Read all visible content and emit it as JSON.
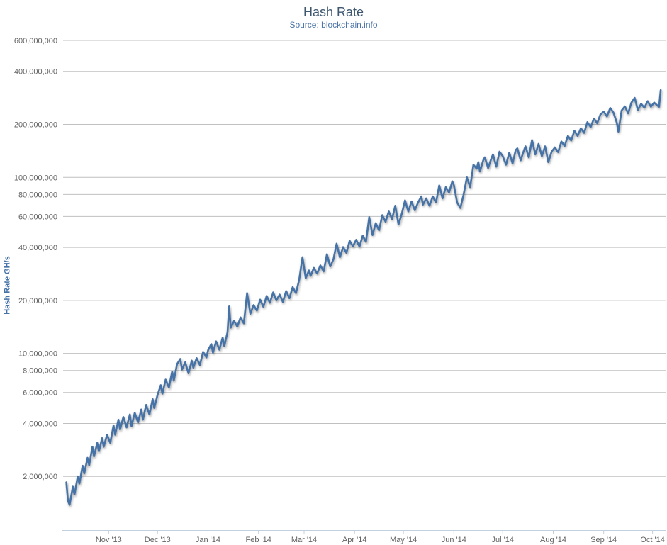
{
  "chart": {
    "title": "Hash Rate",
    "subtitle": "Source: blockchain.info",
    "y_axis_title": "Hash Rate GH/s"
  },
  "colors": {
    "series": "#4572A7",
    "title": "#3E576F",
    "subtitle": "#4C74A8",
    "axis_title": "#4572A7",
    "axis_label": "#636363",
    "gridline": "#C0C0C0",
    "axis_line": "#C0D0E0",
    "background": "#FFFFFF"
  },
  "chart_data": {
    "type": "line",
    "title": "Hash Rate",
    "subtitle": "Source: blockchain.info",
    "xlabel": "",
    "ylabel": "Hash Rate GH/s",
    "y_unit": "GH/s",
    "y_scale": "log",
    "ylim": [
      1000000,
      600000000
    ],
    "grid": "horizontal",
    "legend": "none",
    "x_range_dates": [
      "2013-10-04",
      "2014-10-09"
    ],
    "yticks": [
      {
        "value": 600000000,
        "label": "600,000,000"
      },
      {
        "value": 400000000,
        "label": "400,000,000"
      },
      {
        "value": 200000000,
        "label": "200,000,000"
      },
      {
        "value": 100000000,
        "label": "100,000,000"
      },
      {
        "value": 80000000,
        "label": "80,000,000"
      },
      {
        "value": 60000000,
        "label": "60,000,000"
      },
      {
        "value": 40000000,
        "label": "40,000,000"
      },
      {
        "value": 20000000,
        "label": "20,000,000"
      },
      {
        "value": 10000000,
        "label": "10,000,000"
      },
      {
        "value": 8000000,
        "label": "8,000,000"
      },
      {
        "value": 6000000,
        "label": "6,000,000"
      },
      {
        "value": 4000000,
        "label": "4,000,000"
      },
      {
        "value": 2000000,
        "label": "2,000,000"
      }
    ],
    "xticks": [
      {
        "date": "2013-11-01",
        "label": "Nov '13"
      },
      {
        "date": "2013-12-01",
        "label": "Dec '13"
      },
      {
        "date": "2014-01-01",
        "label": "Jan '14"
      },
      {
        "date": "2014-02-01",
        "label": "Feb '14"
      },
      {
        "date": "2014-03-01",
        "label": "Mar '14"
      },
      {
        "date": "2014-04-01",
        "label": "Apr '14"
      },
      {
        "date": "2014-05-01",
        "label": "May '14"
      },
      {
        "date": "2014-06-01",
        "label": "Jun '14"
      },
      {
        "date": "2014-07-01",
        "label": "Jul '14"
      },
      {
        "date": "2014-08-01",
        "label": "Aug '14"
      },
      {
        "date": "2014-09-01",
        "label": "Sep '14"
      },
      {
        "date": "2014-10-01",
        "label": "Oct '14"
      }
    ],
    "series": [
      {
        "name": "Hash Rate",
        "unit": "GH/s",
        "value_scale": 1000000,
        "points_note": "values are millions of GH/s, estimated from plot",
        "points": [
          [
            "2013-10-06",
            1.85
          ],
          [
            "2013-10-07",
            1.45
          ],
          [
            "2013-10-08",
            1.38
          ],
          [
            "2013-10-10",
            1.75
          ],
          [
            "2013-10-11",
            1.58
          ],
          [
            "2013-10-13",
            2.0
          ],
          [
            "2013-10-14",
            1.82
          ],
          [
            "2013-10-16",
            2.3
          ],
          [
            "2013-10-17",
            2.08
          ],
          [
            "2013-10-19",
            2.55
          ],
          [
            "2013-10-20",
            2.32
          ],
          [
            "2013-10-22",
            2.95
          ],
          [
            "2013-10-23",
            2.6
          ],
          [
            "2013-10-25",
            3.1
          ],
          [
            "2013-10-26",
            2.78
          ],
          [
            "2013-10-28",
            3.3
          ],
          [
            "2013-10-29",
            2.95
          ],
          [
            "2013-10-31",
            3.45
          ],
          [
            "2013-11-02",
            3.1
          ],
          [
            "2013-11-04",
            3.9
          ],
          [
            "2013-11-05",
            3.45
          ],
          [
            "2013-11-07",
            4.2
          ],
          [
            "2013-11-08",
            3.7
          ],
          [
            "2013-11-10",
            4.35
          ],
          [
            "2013-11-12",
            3.8
          ],
          [
            "2013-11-14",
            4.5
          ],
          [
            "2013-11-15",
            3.85
          ],
          [
            "2013-11-17",
            4.6
          ],
          [
            "2013-11-19",
            4.05
          ],
          [
            "2013-11-21",
            4.8
          ],
          [
            "2013-11-22",
            4.2
          ],
          [
            "2013-11-24",
            5.1
          ],
          [
            "2013-11-26",
            4.5
          ],
          [
            "2013-11-28",
            5.5
          ],
          [
            "2013-11-29",
            4.9
          ],
          [
            "2013-12-01",
            5.8
          ],
          [
            "2013-12-03",
            6.6
          ],
          [
            "2013-12-04",
            5.9
          ],
          [
            "2013-12-06",
            7.1
          ],
          [
            "2013-12-08",
            6.4
          ],
          [
            "2013-12-10",
            7.9
          ],
          [
            "2013-12-11",
            7.0
          ],
          [
            "2013-12-13",
            8.7
          ],
          [
            "2013-12-15",
            9.3
          ],
          [
            "2013-12-16",
            8.1
          ],
          [
            "2013-12-18",
            8.9
          ],
          [
            "2013-12-20",
            7.7
          ],
          [
            "2013-12-22",
            9.1
          ],
          [
            "2013-12-23",
            8.3
          ],
          [
            "2013-12-25",
            9.4
          ],
          [
            "2013-12-27",
            8.6
          ],
          [
            "2013-12-29",
            10.2
          ],
          [
            "2013-12-31",
            9.5
          ],
          [
            "2014-01-01",
            10.4
          ],
          [
            "2014-01-03",
            11.3
          ],
          [
            "2014-01-04",
            10.1
          ],
          [
            "2014-01-06",
            11.7
          ],
          [
            "2014-01-08",
            10.5
          ],
          [
            "2014-01-10",
            12.3
          ],
          [
            "2014-01-11",
            11.0
          ],
          [
            "2014-01-13",
            13.2
          ],
          [
            "2014-01-14",
            18.5
          ],
          [
            "2014-01-15",
            14.0
          ],
          [
            "2014-01-17",
            15.3
          ],
          [
            "2014-01-19",
            14.2
          ],
          [
            "2014-01-21",
            16.0
          ],
          [
            "2014-01-23",
            14.8
          ],
          [
            "2014-01-25",
            22.0
          ],
          [
            "2014-01-27",
            16.8
          ],
          [
            "2014-01-29",
            18.8
          ],
          [
            "2014-01-31",
            17.5
          ],
          [
            "2014-02-02",
            20.2
          ],
          [
            "2014-02-04",
            18.4
          ],
          [
            "2014-02-06",
            21.2
          ],
          [
            "2014-02-08",
            19.4
          ],
          [
            "2014-02-10",
            22.2
          ],
          [
            "2014-02-12",
            20.0
          ],
          [
            "2014-02-14",
            21.6
          ],
          [
            "2014-02-16",
            19.6
          ],
          [
            "2014-02-18",
            22.6
          ],
          [
            "2014-02-20",
            20.6
          ],
          [
            "2014-02-22",
            23.8
          ],
          [
            "2014-02-24",
            22.0
          ],
          [
            "2014-02-26",
            26.2
          ],
          [
            "2014-02-28",
            35.2
          ],
          [
            "2014-03-02",
            26.8
          ],
          [
            "2014-03-04",
            29.6
          ],
          [
            "2014-03-05",
            27.6
          ],
          [
            "2014-03-07",
            30.6
          ],
          [
            "2014-03-09",
            28.4
          ],
          [
            "2014-03-11",
            31.6
          ],
          [
            "2014-03-13",
            29.2
          ],
          [
            "2014-03-15",
            36.6
          ],
          [
            "2014-03-17",
            31.2
          ],
          [
            "2014-03-19",
            34.2
          ],
          [
            "2014-03-21",
            42.0
          ],
          [
            "2014-03-23",
            35.2
          ],
          [
            "2014-03-25",
            40.2
          ],
          [
            "2014-03-27",
            37.2
          ],
          [
            "2014-03-29",
            43.6
          ],
          [
            "2014-03-31",
            40.6
          ],
          [
            "2014-04-02",
            44.2
          ],
          [
            "2014-04-04",
            40.4
          ],
          [
            "2014-04-06",
            46.6
          ],
          [
            "2014-04-08",
            43.0
          ],
          [
            "2014-04-10",
            59.5
          ],
          [
            "2014-04-12",
            47.0
          ],
          [
            "2014-04-14",
            55.0
          ],
          [
            "2014-04-16",
            50.0
          ],
          [
            "2014-04-18",
            61.0
          ],
          [
            "2014-04-20",
            56.0
          ],
          [
            "2014-04-22",
            64.0
          ],
          [
            "2014-04-24",
            58.0
          ],
          [
            "2014-04-26",
            69.0
          ],
          [
            "2014-04-28",
            54.0
          ],
          [
            "2014-04-30",
            62.0
          ],
          [
            "2014-05-02",
            74.0
          ],
          [
            "2014-05-04",
            64.0
          ],
          [
            "2014-05-06",
            73.0
          ],
          [
            "2014-05-08",
            65.0
          ],
          [
            "2014-05-10",
            72.0
          ],
          [
            "2014-05-12",
            78.0
          ],
          [
            "2014-05-13",
            70.0
          ],
          [
            "2014-05-15",
            76.0
          ],
          [
            "2014-05-17",
            69.0
          ],
          [
            "2014-05-19",
            78.0
          ],
          [
            "2014-05-21",
            72.0
          ],
          [
            "2014-05-23",
            90.0
          ],
          [
            "2014-05-25",
            76.0
          ],
          [
            "2014-05-27",
            88.0
          ],
          [
            "2014-05-29",
            82.0
          ],
          [
            "2014-05-31",
            95.0
          ],
          [
            "2014-06-01",
            90.0
          ],
          [
            "2014-06-03",
            72.0
          ],
          [
            "2014-06-05",
            67.0
          ],
          [
            "2014-06-07",
            80.0
          ],
          [
            "2014-06-09",
            100.0
          ],
          [
            "2014-06-11",
            88.0
          ],
          [
            "2014-06-13",
            118.0
          ],
          [
            "2014-06-15",
            112.0
          ],
          [
            "2014-06-16",
            122.0
          ],
          [
            "2014-06-17",
            108.0
          ],
          [
            "2014-06-19",
            125.0
          ],
          [
            "2014-06-20",
            130.0
          ],
          [
            "2014-06-22",
            113.0
          ],
          [
            "2014-06-24",
            128.0
          ],
          [
            "2014-06-25",
            135.0
          ],
          [
            "2014-06-27",
            115.0
          ],
          [
            "2014-06-29",
            140.0
          ],
          [
            "2014-07-01",
            132.0
          ],
          [
            "2014-07-03",
            118.0
          ],
          [
            "2014-07-05",
            138.0
          ],
          [
            "2014-07-07",
            120.0
          ],
          [
            "2014-07-09",
            143.0
          ],
          [
            "2014-07-10",
            146.0
          ],
          [
            "2014-07-12",
            125.0
          ],
          [
            "2014-07-14",
            142.0
          ],
          [
            "2014-07-15",
            150.0
          ],
          [
            "2014-07-17",
            130.0
          ],
          [
            "2014-07-19",
            163.0
          ],
          [
            "2014-07-21",
            135.0
          ],
          [
            "2014-07-23",
            155.0
          ],
          [
            "2014-07-25",
            132.0
          ],
          [
            "2014-07-27",
            150.0
          ],
          [
            "2014-07-29",
            122.0
          ],
          [
            "2014-07-31",
            140.0
          ],
          [
            "2014-08-02",
            148.0
          ],
          [
            "2014-08-04",
            139.0
          ],
          [
            "2014-08-06",
            160.0
          ],
          [
            "2014-08-08",
            151.0
          ],
          [
            "2014-08-10",
            172.0
          ],
          [
            "2014-08-12",
            162.0
          ],
          [
            "2014-08-14",
            184.0
          ],
          [
            "2014-08-16",
            172.0
          ],
          [
            "2014-08-18",
            190.0
          ],
          [
            "2014-08-20",
            179.0
          ],
          [
            "2014-08-22",
            206.0
          ],
          [
            "2014-08-24",
            193.0
          ],
          [
            "2014-08-26",
            216.0
          ],
          [
            "2014-08-28",
            203.0
          ],
          [
            "2014-08-30",
            228.0
          ],
          [
            "2014-09-01",
            236.0
          ],
          [
            "2014-09-03",
            222.0
          ],
          [
            "2014-09-05",
            248.0
          ],
          [
            "2014-09-07",
            233.0
          ],
          [
            "2014-09-09",
            205.0
          ],
          [
            "2014-09-10",
            182.0
          ],
          [
            "2014-09-12",
            240.0
          ],
          [
            "2014-09-14",
            253.0
          ],
          [
            "2014-09-16",
            231.0
          ],
          [
            "2014-09-18",
            266.0
          ],
          [
            "2014-09-20",
            283.0
          ],
          [
            "2014-09-22",
            241.0
          ],
          [
            "2014-09-24",
            262.0
          ],
          [
            "2014-09-26",
            249.0
          ],
          [
            "2014-09-28",
            271.0
          ],
          [
            "2014-09-30",
            252.0
          ],
          [
            "2014-10-02",
            266.0
          ],
          [
            "2014-10-04",
            256.0
          ],
          [
            "2014-10-05",
            252.0
          ],
          [
            "2014-10-06",
            313.0
          ]
        ]
      }
    ]
  }
}
